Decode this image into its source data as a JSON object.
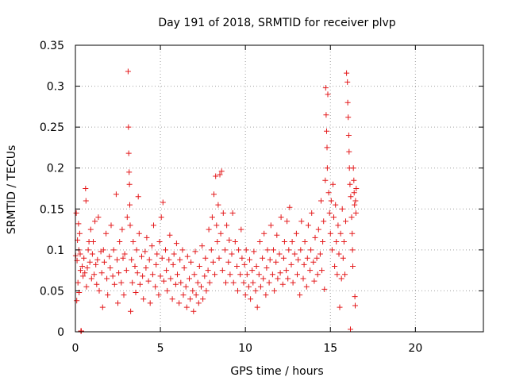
{
  "chart_data": {
    "type": "scatter",
    "title": "Day 191 of 2018, SRMTID for receiver plvp",
    "xlabel": "GPS time / hours",
    "ylabel": "SRMTID / TECUs",
    "xlim": [
      0,
      24
    ],
    "ylim": [
      0,
      0.35
    ],
    "xticks": [
      0,
      5,
      10,
      15,
      20
    ],
    "xtick_labels": [
      "0",
      "5",
      "10",
      "15",
      "20"
    ],
    "yticks": [
      0,
      0.05,
      0.1,
      0.15,
      0.2,
      0.25,
      0.3,
      0.35
    ],
    "ytick_labels": [
      "0",
      "0.05",
      "0.1",
      "0.15",
      "0.2",
      "0.25",
      "0.3",
      "0.35"
    ],
    "grid": true,
    "marker": "+",
    "color": "#e41a1c",
    "series": [
      {
        "name": "plvp",
        "points": [
          [
            0.02,
            0.093
          ],
          [
            0.05,
            0.145
          ],
          [
            0.08,
            0.038
          ],
          [
            0.1,
            0.087
          ],
          [
            0.12,
            0.112
          ],
          [
            0.15,
            0.06
          ],
          [
            0.18,
            0.132
          ],
          [
            0.2,
            0.1
          ],
          [
            0.22,
            0.048
          ],
          [
            0.25,
            0.12
          ],
          [
            0.28,
            0.095
          ],
          [
            0.3,
            0.075
          ],
          [
            0.32,
            0.001
          ],
          [
            0.35,
            0.001
          ],
          [
            0.4,
            0.08
          ],
          [
            0.45,
            0.068
          ],
          [
            0.5,
            0.09
          ],
          [
            0.55,
            0.072
          ],
          [
            0.6,
            0.175
          ],
          [
            0.62,
            0.16
          ],
          [
            0.65,
            0.055
          ],
          [
            0.7,
            0.078
          ],
          [
            0.75,
            0.1
          ],
          [
            0.8,
            0.11
          ],
          [
            0.85,
            0.085
          ],
          [
            0.9,
            0.125
          ],
          [
            0.95,
            0.065
          ],
          [
            1.0,
            0.095
          ],
          [
            1.05,
            0.11
          ],
          [
            1.1,
            0.07
          ],
          [
            1.15,
            0.135
          ],
          [
            1.2,
            0.082
          ],
          [
            1.25,
            0.058
          ],
          [
            1.3,
            0.088
          ],
          [
            1.35,
            0.14
          ],
          [
            1.4,
            0.05
          ],
          [
            1.5,
            0.098
          ],
          [
            1.55,
            0.072
          ],
          [
            1.6,
            0.03
          ],
          [
            1.65,
            0.1
          ],
          [
            1.7,
            0.085
          ],
          [
            1.8,
            0.12
          ],
          [
            1.85,
            0.065
          ],
          [
            1.9,
            0.045
          ],
          [
            2.0,
            0.092
          ],
          [
            2.05,
            0.078
          ],
          [
            2.1,
            0.13
          ],
          [
            2.2,
            0.068
          ],
          [
            2.25,
            0.1
          ],
          [
            2.3,
            0.058
          ],
          [
            2.4,
            0.168
          ],
          [
            2.45,
            0.088
          ],
          [
            2.5,
            0.035
          ],
          [
            2.55,
            0.072
          ],
          [
            2.6,
            0.11
          ],
          [
            2.7,
            0.06
          ],
          [
            2.75,
            0.125
          ],
          [
            2.8,
            0.09
          ],
          [
            2.85,
            0.045
          ],
          [
            2.9,
            0.095
          ],
          [
            3.0,
            0.075
          ],
          [
            3.05,
            0.14
          ],
          [
            3.1,
            0.318
          ],
          [
            3.12,
            0.25
          ],
          [
            3.14,
            0.218
          ],
          [
            3.16,
            0.195
          ],
          [
            3.18,
            0.18
          ],
          [
            3.2,
            0.155
          ],
          [
            3.22,
            0.13
          ],
          [
            3.25,
            0.025
          ],
          [
            3.3,
            0.088
          ],
          [
            3.35,
            0.06
          ],
          [
            3.4,
            0.11
          ],
          [
            3.5,
            0.08
          ],
          [
            3.55,
            0.048
          ],
          [
            3.6,
            0.1
          ],
          [
            3.65,
            0.072
          ],
          [
            3.7,
            0.165
          ],
          [
            3.75,
            0.12
          ],
          [
            3.8,
            0.058
          ],
          [
            3.9,
            0.092
          ],
          [
            3.95,
            0.068
          ],
          [
            4.0,
            0.04
          ],
          [
            4.1,
            0.098
          ],
          [
            4.15,
            0.078
          ],
          [
            4.2,
            0.115
          ],
          [
            4.3,
            0.062
          ],
          [
            4.35,
            0.088
          ],
          [
            4.4,
            0.035
          ],
          [
            4.5,
            0.105
          ],
          [
            4.55,
            0.07
          ],
          [
            4.6,
            0.13
          ],
          [
            4.7,
            0.055
          ],
          [
            4.75,
            0.082
          ],
          [
            4.8,
            0.095
          ],
          [
            4.9,
            0.045
          ],
          [
            4.95,
            0.11
          ],
          [
            5.0,
            0.068
          ],
          [
            5.05,
            0.14
          ],
          [
            5.1,
            0.09
          ],
          [
            5.15,
            0.158
          ],
          [
            5.2,
            0.062
          ],
          [
            5.3,
            0.1
          ],
          [
            5.35,
            0.075
          ],
          [
            5.4,
            0.05
          ],
          [
            5.5,
            0.088
          ],
          [
            5.55,
            0.118
          ],
          [
            5.6,
            0.065
          ],
          [
            5.7,
            0.04
          ],
          [
            5.75,
            0.082
          ],
          [
            5.8,
            0.095
          ],
          [
            5.9,
            0.058
          ],
          [
            5.95,
            0.108
          ],
          [
            6.0,
            0.07
          ],
          [
            6.1,
            0.035
          ],
          [
            6.15,
            0.088
          ],
          [
            6.2,
            0.06
          ],
          [
            6.3,
            0.1
          ],
          [
            6.35,
            0.045
          ],
          [
            6.4,
            0.078
          ],
          [
            6.5,
            0.055
          ],
          [
            6.55,
            0.03
          ],
          [
            6.6,
            0.092
          ],
          [
            6.7,
            0.065
          ],
          [
            6.75,
            0.04
          ],
          [
            6.8,
            0.085
          ],
          [
            6.9,
            0.05
          ],
          [
            6.95,
            0.025
          ],
          [
            7.0,
            0.07
          ],
          [
            7.05,
            0.098
          ],
          [
            7.1,
            0.045
          ],
          [
            7.2,
            0.06
          ],
          [
            7.25,
            0.035
          ],
          [
            7.3,
            0.08
          ],
          [
            7.4,
            0.055
          ],
          [
            7.45,
            0.105
          ],
          [
            7.5,
            0.04
          ],
          [
            7.6,
            0.068
          ],
          [
            7.65,
            0.09
          ],
          [
            7.7,
            0.05
          ],
          [
            7.8,
            0.075
          ],
          [
            7.85,
            0.125
          ],
          [
            7.9,
            0.06
          ],
          [
            8.0,
            0.1
          ],
          [
            8.05,
            0.14
          ],
          [
            8.1,
            0.085
          ],
          [
            8.15,
            0.168
          ],
          [
            8.2,
            0.07
          ],
          [
            8.25,
            0.19
          ],
          [
            8.3,
            0.13
          ],
          [
            8.35,
            0.11
          ],
          [
            8.4,
            0.155
          ],
          [
            8.45,
            0.09
          ],
          [
            8.5,
            0.192
          ],
          [
            8.55,
            0.12
          ],
          [
            8.6,
            0.196
          ],
          [
            8.65,
            0.075
          ],
          [
            8.7,
            0.145
          ],
          [
            8.8,
            0.1
          ],
          [
            8.85,
            0.06
          ],
          [
            8.9,
            0.13
          ],
          [
            9.0,
            0.085
          ],
          [
            9.05,
            0.112
          ],
          [
            9.1,
            0.07
          ],
          [
            9.2,
            0.095
          ],
          [
            9.25,
            0.145
          ],
          [
            9.3,
            0.06
          ],
          [
            9.4,
            0.11
          ],
          [
            9.5,
            0.08
          ],
          [
            9.55,
            0.05
          ],
          [
            9.6,
            0.1
          ],
          [
            9.7,
            0.07
          ],
          [
            9.75,
            0.125
          ],
          [
            9.8,
            0.09
          ],
          [
            9.9,
            0.06
          ],
          [
            9.95,
            0.082
          ],
          [
            10.0,
            0.045
          ],
          [
            10.05,
            0.1
          ],
          [
            10.1,
            0.07
          ],
          [
            10.2,
            0.055
          ],
          [
            10.25,
            0.088
          ],
          [
            10.3,
            0.04
          ],
          [
            10.4,
            0.075
          ],
          [
            10.45,
            0.06
          ],
          [
            10.5,
            0.098
          ],
          [
            10.6,
            0.05
          ],
          [
            10.65,
            0.08
          ],
          [
            10.7,
            0.03
          ],
          [
            10.8,
            0.07
          ],
          [
            10.85,
            0.11
          ],
          [
            10.9,
            0.055
          ],
          [
            11.0,
            0.09
          ],
          [
            11.05,
            0.065
          ],
          [
            11.1,
            0.12
          ],
          [
            11.2,
            0.045
          ],
          [
            11.25,
            0.078
          ],
          [
            11.3,
            0.1
          ],
          [
            11.4,
            0.06
          ],
          [
            11.45,
            0.088
          ],
          [
            11.5,
            0.13
          ],
          [
            11.6,
            0.07
          ],
          [
            11.65,
            0.1
          ],
          [
            11.7,
            0.05
          ],
          [
            11.8,
            0.085
          ],
          [
            11.85,
            0.118
          ],
          [
            11.9,
            0.065
          ],
          [
            12.0,
            0.095
          ],
          [
            12.05,
            0.072
          ],
          [
            12.1,
            0.14
          ],
          [
            12.2,
            0.058
          ],
          [
            12.25,
            0.09
          ],
          [
            12.3,
            0.11
          ],
          [
            12.4,
            0.075
          ],
          [
            12.45,
            0.135
          ],
          [
            12.5,
            0.065
          ],
          [
            12.55,
            0.1
          ],
          [
            12.6,
            0.152
          ],
          [
            12.7,
            0.082
          ],
          [
            12.75,
            0.11
          ],
          [
            12.8,
            0.06
          ],
          [
            12.9,
            0.095
          ],
          [
            13.0,
            0.12
          ],
          [
            13.05,
            0.07
          ],
          [
            13.1,
            0.088
          ],
          [
            13.2,
            0.045
          ],
          [
            13.25,
            0.1
          ],
          [
            13.3,
            0.135
          ],
          [
            13.4,
            0.065
          ],
          [
            13.45,
            0.082
          ],
          [
            13.5,
            0.11
          ],
          [
            13.6,
            0.055
          ],
          [
            13.65,
            0.09
          ],
          [
            13.7,
            0.13
          ],
          [
            13.8,
            0.075
          ],
          [
            13.85,
            0.1
          ],
          [
            13.9,
            0.145
          ],
          [
            14.0,
            0.085
          ],
          [
            14.05,
            0.062
          ],
          [
            14.1,
            0.115
          ],
          [
            14.2,
            0.09
          ],
          [
            14.25,
            0.07
          ],
          [
            14.3,
            0.125
          ],
          [
            14.4,
            0.095
          ],
          [
            14.45,
            0.16
          ],
          [
            14.5,
            0.075
          ],
          [
            14.55,
            0.11
          ],
          [
            14.6,
            0.135
          ],
          [
            14.65,
            0.052
          ],
          [
            14.7,
            0.185
          ],
          [
            14.72,
            0.298
          ],
          [
            14.75,
            0.265
          ],
          [
            14.78,
            0.245
          ],
          [
            14.8,
            0.225
          ],
          [
            14.82,
            0.2
          ],
          [
            14.85,
            0.29
          ],
          [
            14.9,
            0.17
          ],
          [
            14.95,
            0.145
          ],
          [
            15.0,
            0.12
          ],
          [
            15.05,
            0.16
          ],
          [
            15.1,
            0.1
          ],
          [
            15.15,
            0.18
          ],
          [
            15.2,
            0.14
          ],
          [
            15.25,
            0.08
          ],
          [
            15.3,
            0.155
          ],
          [
            15.35,
            0.11
          ],
          [
            15.4,
            0.07
          ],
          [
            15.45,
            0.13
          ],
          [
            15.5,
            0.095
          ],
          [
            15.55,
            0.03
          ],
          [
            15.6,
            0.12
          ],
          [
            15.65,
            0.065
          ],
          [
            15.7,
            0.15
          ],
          [
            15.75,
            0.09
          ],
          [
            15.8,
            0.11
          ],
          [
            15.85,
            0.07
          ],
          [
            15.9,
            0.135
          ],
          [
            15.95,
            0.316
          ],
          [
            16.0,
            0.305
          ],
          [
            16.02,
            0.28
          ],
          [
            16.05,
            0.262
          ],
          [
            16.08,
            0.24
          ],
          [
            16.1,
            0.22
          ],
          [
            16.12,
            0.2
          ],
          [
            16.15,
            0.18
          ],
          [
            16.18,
            0.003
          ],
          [
            16.2,
            0.165
          ],
          [
            16.25,
            0.14
          ],
          [
            16.28,
            0.12
          ],
          [
            16.3,
            0.1
          ],
          [
            16.32,
            0.08
          ],
          [
            16.35,
            0.2
          ],
          [
            16.38,
            0.185
          ],
          [
            16.4,
            0.17
          ],
          [
            16.42,
            0.155
          ],
          [
            16.44,
            0.043
          ],
          [
            16.46,
            0.032
          ],
          [
            16.48,
            0.16
          ],
          [
            16.5,
            0.145
          ],
          [
            16.52,
            0.175
          ]
        ]
      }
    ]
  }
}
